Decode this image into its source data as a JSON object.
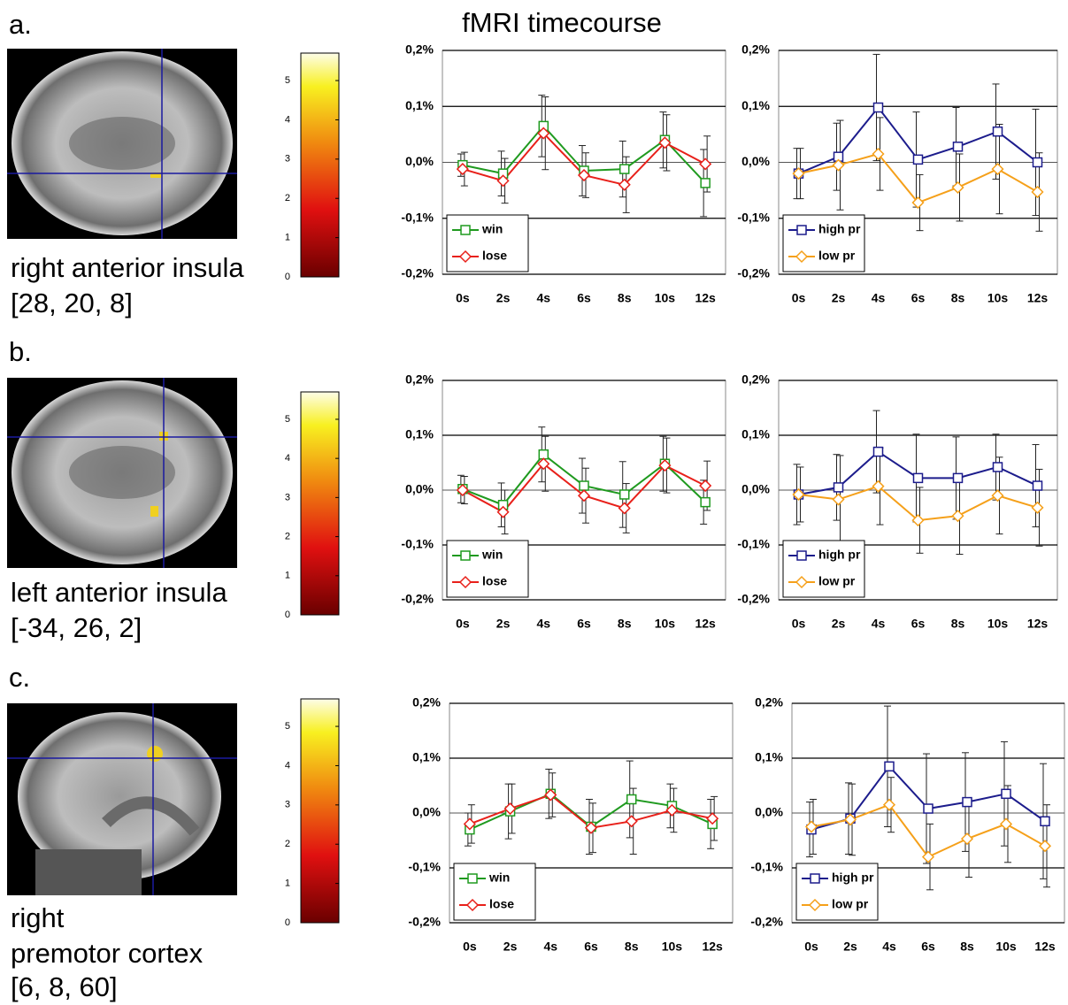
{
  "title": "fMRI timecourse",
  "panels": [
    {
      "label": "a.",
      "region": [
        "right anterior insula",
        "[28, 20, 8]"
      ],
      "colorbar": {
        "ylim": [
          0,
          5.7
        ],
        "yticks": [
          0,
          1,
          2,
          3,
          4,
          5
        ]
      }
    },
    {
      "label": "b.",
      "region": [
        "left anterior insula",
        "[-34, 26, 2]"
      ],
      "colorbar": {
        "ylim": [
          0,
          5.7
        ],
        "yticks": [
          0,
          1,
          2,
          3,
          4,
          5
        ]
      }
    },
    {
      "label": "c.",
      "region": [
        "right",
        "premotor cortex",
        "[6, 8, 60]"
      ],
      "colorbar": {
        "ylim": [
          0,
          5.7
        ],
        "yticks": [
          0,
          1,
          2,
          3,
          4,
          5
        ]
      }
    }
  ],
  "chart_data": [
    {
      "type": "line",
      "categories": [
        "0s",
        "2s",
        "4s",
        "6s",
        "8s",
        "10s",
        "12s"
      ],
      "ylim": [
        -0.2,
        0.2
      ],
      "yticks": [
        {
          "value": -0.2,
          "label": "-0,2%"
        },
        {
          "value": -0.1,
          "label": "-0,1%"
        },
        {
          "value": 0,
          "label": "0,0%"
        },
        {
          "value": 0.1,
          "label": "0,1%"
        },
        {
          "value": 0.2,
          "label": "0,2%"
        }
      ],
      "legend": "lower left",
      "series": [
        {
          "name": "win",
          "color": "#1f9a1f",
          "marker": "square",
          "values": [
            -0.005,
            -0.02,
            0.065,
            -0.015,
            -0.012,
            0.04,
            -0.037
          ],
          "errors": [
            0.02,
            0.04,
            0.055,
            0.045,
            0.05,
            0.05,
            0.06
          ]
        },
        {
          "name": "lose",
          "color": "#e8201a",
          "marker": "diamond",
          "values": [
            -0.012,
            -0.033,
            0.052,
            -0.023,
            -0.04,
            0.035,
            -0.003
          ],
          "errors": [
            0.03,
            0.04,
            0.065,
            0.04,
            0.05,
            0.05,
            0.05
          ]
        }
      ]
    },
    {
      "type": "line",
      "categories": [
        "0s",
        "2s",
        "4s",
        "6s",
        "8s",
        "10s",
        "12s"
      ],
      "ylim": [
        -0.2,
        0.2
      ],
      "yticks": [
        {
          "value": -0.2,
          "label": "-0,2%"
        },
        {
          "value": -0.1,
          "label": "-0,1%"
        },
        {
          "value": 0,
          "label": "0,0%"
        },
        {
          "value": 0.1,
          "label": "0,1%"
        },
        {
          "value": 0.2,
          "label": "0,2%"
        }
      ],
      "legend": "lower left",
      "series": [
        {
          "name": "high pr",
          "color": "#1c1c8c",
          "marker": "square",
          "values": [
            -0.02,
            0.01,
            0.098,
            0.005,
            0.028,
            0.055,
            0.0
          ],
          "errors": [
            0.045,
            0.06,
            0.095,
            0.085,
            0.07,
            0.085,
            0.095
          ]
        },
        {
          "name": "low pr",
          "color": "#f5a01a",
          "marker": "diamond",
          "values": [
            -0.02,
            -0.005,
            0.015,
            -0.072,
            -0.045,
            -0.012,
            -0.053
          ],
          "errors": [
            0.045,
            0.08,
            0.065,
            0.05,
            0.06,
            0.08,
            0.07
          ]
        }
      ]
    },
    {
      "type": "line",
      "categories": [
        "0s",
        "2s",
        "4s",
        "6s",
        "8s",
        "10s",
        "12s"
      ],
      "ylim": [
        -0.2,
        0.2
      ],
      "yticks": [
        {
          "value": -0.2,
          "label": "-0,2%"
        },
        {
          "value": -0.1,
          "label": "-0,1%"
        },
        {
          "value": 0,
          "label": "0,0%"
        },
        {
          "value": 0.1,
          "label": "0,1%"
        },
        {
          "value": 0.2,
          "label": "0,2%"
        }
      ],
      "legend": "lower left",
      "series": [
        {
          "name": "win",
          "color": "#1f9a1f",
          "marker": "square",
          "values": [
            0.002,
            -0.027,
            0.065,
            0.008,
            -0.008,
            0.048,
            -0.022
          ],
          "errors": [
            0.025,
            0.04,
            0.05,
            0.05,
            0.06,
            0.05,
            0.04
          ]
        },
        {
          "name": "lose",
          "color": "#e8201a",
          "marker": "diamond",
          "values": [
            0.0,
            -0.04,
            0.048,
            -0.01,
            -0.033,
            0.045,
            0.008
          ],
          "errors": [
            0.025,
            0.04,
            0.05,
            0.05,
            0.045,
            0.05,
            0.045
          ]
        }
      ]
    },
    {
      "type": "line",
      "categories": [
        "0s",
        "2s",
        "4s",
        "6s",
        "8s",
        "10s",
        "12s"
      ],
      "ylim": [
        -0.2,
        0.2
      ],
      "yticks": [
        {
          "value": -0.2,
          "label": "-0,2%"
        },
        {
          "value": -0.1,
          "label": "-0,1%"
        },
        {
          "value": 0,
          "label": "0,0%"
        },
        {
          "value": 0.1,
          "label": "0,1%"
        },
        {
          "value": 0.2,
          "label": "0,2%"
        }
      ],
      "legend": "lower left",
      "series": [
        {
          "name": "high pr",
          "color": "#1c1c8c",
          "marker": "square",
          "values": [
            -0.008,
            0.005,
            0.07,
            0.022,
            0.022,
            0.042,
            0.008
          ],
          "errors": [
            0.055,
            0.06,
            0.075,
            0.08,
            0.075,
            0.06,
            0.075
          ]
        },
        {
          "name": "low pr",
          "color": "#f5a01a",
          "marker": "diamond",
          "values": [
            -0.008,
            -0.017,
            0.007,
            -0.055,
            -0.047,
            -0.01,
            -0.032
          ],
          "errors": [
            0.05,
            0.08,
            0.07,
            0.06,
            0.07,
            0.07,
            0.07
          ]
        }
      ]
    },
    {
      "type": "line",
      "categories": [
        "0s",
        "2s",
        "4s",
        "6s",
        "8s",
        "10s",
        "12s"
      ],
      "ylim": [
        -0.2,
        0.2
      ],
      "yticks": [
        {
          "value": -0.2,
          "label": "-0,2%"
        },
        {
          "value": -0.1,
          "label": "-0,1%"
        },
        {
          "value": 0,
          "label": "0,0%"
        },
        {
          "value": 0.1,
          "label": "0,1%"
        },
        {
          "value": 0.2,
          "label": "0,2%"
        }
      ],
      "legend": "lower left",
      "series": [
        {
          "name": "win",
          "color": "#1f9a1f",
          "marker": "square",
          "values": [
            -0.03,
            0.003,
            0.035,
            -0.025,
            0.025,
            0.013,
            -0.02
          ],
          "errors": [
            0.03,
            0.05,
            0.045,
            0.05,
            0.07,
            0.04,
            0.045
          ]
        },
        {
          "name": "lose",
          "color": "#e8201a",
          "marker": "diamond",
          "values": [
            -0.02,
            0.008,
            0.033,
            -0.027,
            -0.015,
            0.005,
            -0.01
          ],
          "errors": [
            0.035,
            0.045,
            0.04,
            0.045,
            0.06,
            0.04,
            0.04
          ]
        }
      ]
    },
    {
      "type": "line",
      "categories": [
        "0s",
        "2s",
        "4s",
        "6s",
        "8s",
        "10s",
        "12s"
      ],
      "ylim": [
        -0.2,
        0.2
      ],
      "yticks": [
        {
          "value": -0.2,
          "label": "-0,2%"
        },
        {
          "value": -0.1,
          "label": "-0,1%"
        },
        {
          "value": 0,
          "label": "0,0%"
        },
        {
          "value": 0.1,
          "label": "0,1%"
        },
        {
          "value": 0.2,
          "label": "0,2%"
        }
      ],
      "legend": "lower left",
      "series": [
        {
          "name": "high pr",
          "color": "#1c1c8c",
          "marker": "square",
          "values": [
            -0.03,
            -0.01,
            0.085,
            0.008,
            0.02,
            0.035,
            -0.015
          ],
          "errors": [
            0.05,
            0.065,
            0.11,
            0.1,
            0.09,
            0.095,
            0.105
          ]
        },
        {
          "name": "low pr",
          "color": "#f5a01a",
          "marker": "diamond",
          "values": [
            -0.025,
            -0.012,
            0.015,
            -0.08,
            -0.047,
            -0.02,
            -0.06
          ],
          "errors": [
            0.05,
            0.065,
            0.05,
            0.06,
            0.07,
            0.07,
            0.075
          ]
        }
      ]
    }
  ]
}
